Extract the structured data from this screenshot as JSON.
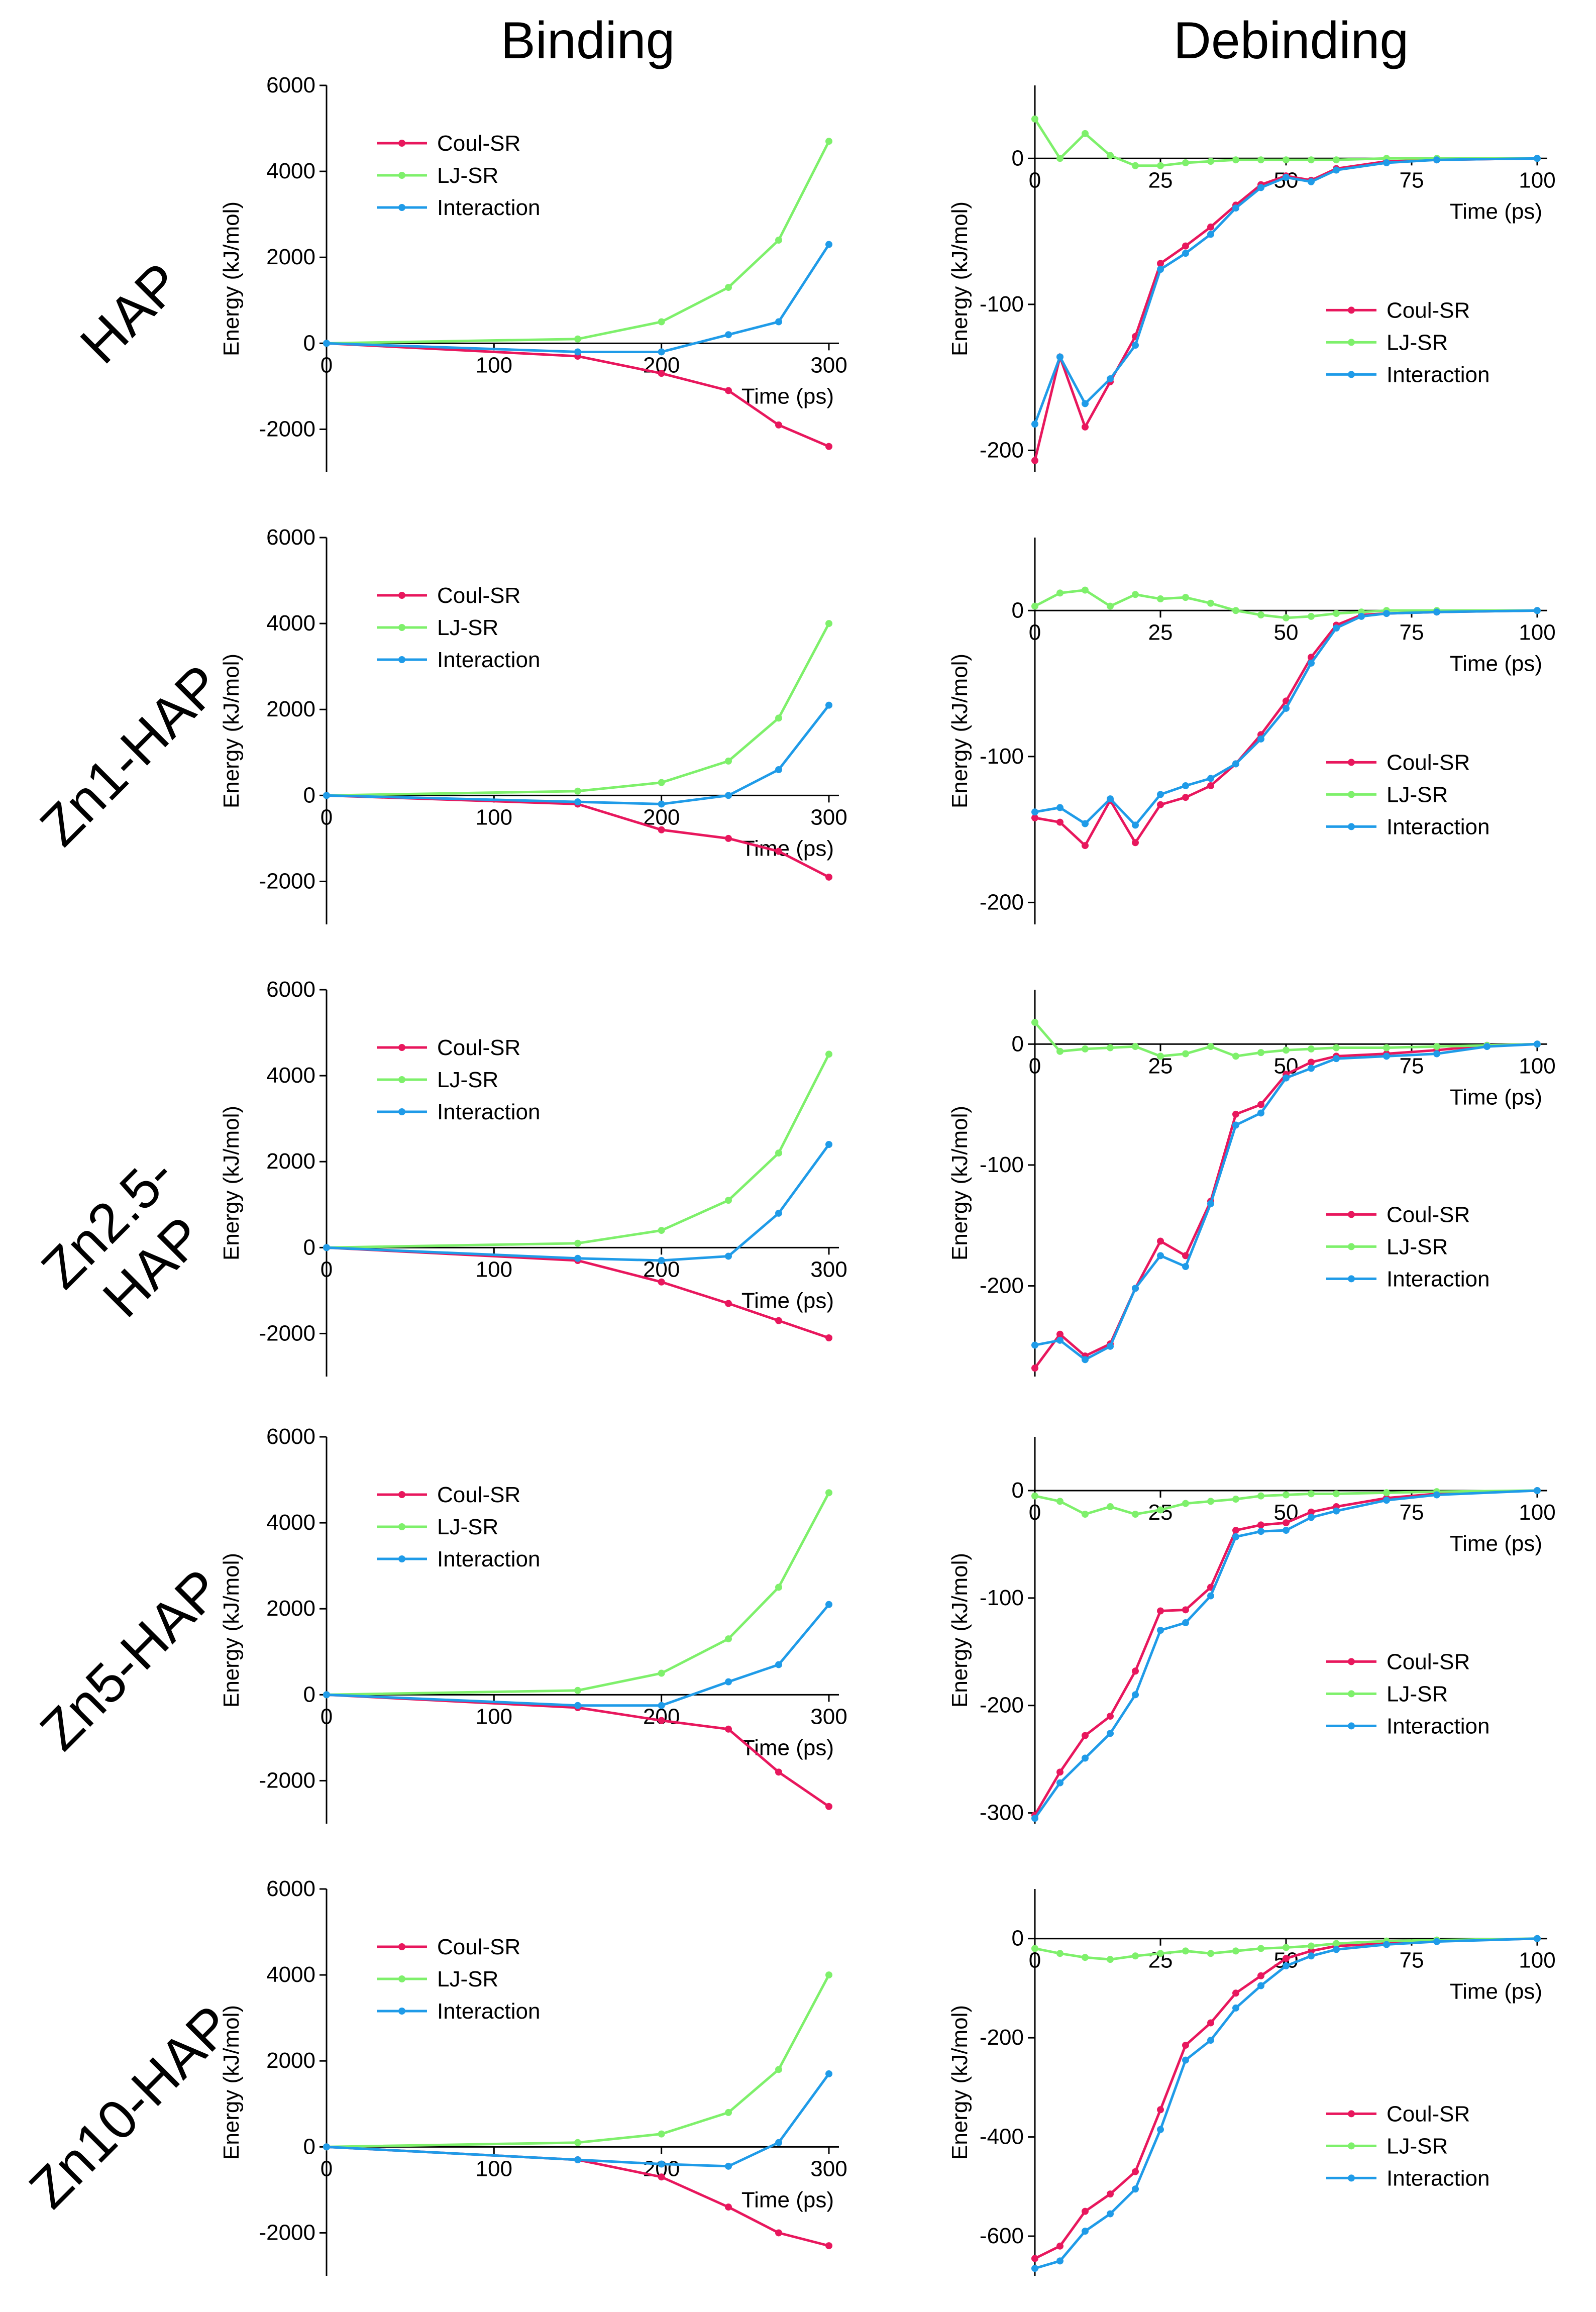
{
  "figure": {
    "col_titles": [
      "Binding",
      "Debinding"
    ],
    "row_labels": [
      "HAP",
      "Zn1-HAP",
      "Zn2.5-HAP",
      "Zn5-HAP",
      "Zn10-HAP"
    ]
  },
  "colors": {
    "coul": "#e8175d",
    "lj": "#7ef06b",
    "inter": "#1f9be8"
  },
  "chart_data": [
    {
      "type": "line",
      "panel": "HAP binding",
      "title": "Binding",
      "row": "HAP",
      "xlabel": "Time (ps)",
      "ylabel": "Energy (kJ/mol)",
      "xlim": [
        0,
        300
      ],
      "ylim": [
        -3000,
        6000
      ],
      "xticks": [
        0,
        100,
        200,
        300
      ],
      "yticks": [
        -2000,
        0,
        2000,
        4000,
        6000
      ],
      "x": [
        0,
        150,
        200,
        240,
        270,
        300
      ],
      "series": [
        {
          "name": "Coul-SR",
          "values": [
            0,
            -300,
            -700,
            -1100,
            -1900,
            -2400
          ]
        },
        {
          "name": "LJ-SR",
          "values": [
            0,
            100,
            500,
            1300,
            2400,
            4700
          ]
        },
        {
          "name": "Interaction",
          "values": [
            0,
            -200,
            -200,
            200,
            500,
            2300
          ]
        }
      ]
    },
    {
      "type": "line",
      "panel": "HAP debinding",
      "title": "Debinding",
      "row": "HAP",
      "xlabel": "Time (ps)",
      "ylabel": "Energy (kJ/mol)",
      "xlim": [
        0,
        100
      ],
      "ylim": [
        -215,
        50
      ],
      "xticks": [
        0,
        25,
        50,
        75,
        100
      ],
      "yticks": [
        -200,
        -100,
        0
      ],
      "x": [
        0,
        5,
        10,
        15,
        20,
        25,
        30,
        35,
        40,
        45,
        50,
        55,
        60,
        70,
        80,
        100
      ],
      "series": [
        {
          "name": "Coul-SR",
          "values": [
            -207,
            -136,
            -184,
            -153,
            -122,
            -72,
            -60,
            -47,
            -32,
            -18,
            -12,
            -15,
            -7,
            -2,
            -1,
            0
          ]
        },
        {
          "name": "LJ-SR",
          "values": [
            27,
            0,
            17,
            2,
            -5,
            -5,
            -3,
            -2,
            -1,
            -1,
            -1,
            -1,
            -1,
            0,
            0,
            0
          ]
        },
        {
          "name": "Interaction",
          "values": [
            -182,
            -136,
            -168,
            -151,
            -128,
            -76,
            -65,
            -52,
            -34,
            -20,
            -13,
            -16,
            -8,
            -3,
            -1,
            0
          ]
        }
      ]
    },
    {
      "type": "line",
      "panel": "Zn1-HAP binding",
      "row": "Zn1-HAP",
      "xlabel": "Time (ps)",
      "ylabel": "Energy (kJ/mol)",
      "xlim": [
        0,
        300
      ],
      "ylim": [
        -3000,
        6000
      ],
      "xticks": [
        0,
        100,
        200,
        300
      ],
      "yticks": [
        -2000,
        0,
        2000,
        4000,
        6000
      ],
      "x": [
        0,
        150,
        200,
        240,
        270,
        300
      ],
      "series": [
        {
          "name": "Coul-SR",
          "values": [
            0,
            -200,
            -800,
            -1000,
            -1300,
            -1900
          ]
        },
        {
          "name": "LJ-SR",
          "values": [
            0,
            100,
            300,
            800,
            1800,
            4000
          ]
        },
        {
          "name": "Interaction",
          "values": [
            0,
            -150,
            -200,
            0,
            600,
            2100
          ]
        }
      ]
    },
    {
      "type": "line",
      "panel": "Zn1-HAP debinding",
      "row": "Zn1-HAP",
      "xlabel": "Time (ps)",
      "ylabel": "Energy (kJ/mol)",
      "xlim": [
        0,
        100
      ],
      "ylim": [
        -215,
        50
      ],
      "xticks": [
        0,
        25,
        50,
        75,
        100
      ],
      "yticks": [
        -200,
        -100,
        0
      ],
      "x": [
        0,
        5,
        10,
        15,
        20,
        25,
        30,
        35,
        40,
        45,
        50,
        55,
        60,
        65,
        70,
        80,
        100
      ],
      "series": [
        {
          "name": "Coul-SR",
          "values": [
            -142,
            -145,
            -161,
            -130,
            -159,
            -133,
            -128,
            -120,
            -105,
            -85,
            -62,
            -32,
            -10,
            -3,
            -2,
            -1,
            0
          ]
        },
        {
          "name": "LJ-SR",
          "values": [
            3,
            12,
            14,
            3,
            11,
            8,
            9,
            5,
            0,
            -3,
            -5,
            -4,
            -2,
            -1,
            0,
            0,
            0
          ]
        },
        {
          "name": "Interaction",
          "values": [
            -138,
            -135,
            -146,
            -129,
            -147,
            -126,
            -120,
            -115,
            -105,
            -88,
            -67,
            -36,
            -12,
            -4,
            -2,
            -1,
            0
          ]
        }
      ]
    },
    {
      "type": "line",
      "panel": "Zn2.5-HAP binding",
      "row": "Zn2.5-HAP",
      "xlabel": "Time (ps)",
      "ylabel": "Energy (kJ/mol)",
      "xlim": [
        0,
        300
      ],
      "ylim": [
        -3000,
        6000
      ],
      "xticks": [
        0,
        100,
        200,
        300
      ],
      "yticks": [
        -2000,
        0,
        2000,
        4000,
        6000
      ],
      "x": [
        0,
        150,
        200,
        240,
        270,
        300
      ],
      "series": [
        {
          "name": "Coul-SR",
          "values": [
            0,
            -300,
            -800,
            -1300,
            -1700,
            -2100
          ]
        },
        {
          "name": "LJ-SR",
          "values": [
            0,
            100,
            400,
            1100,
            2200,
            4500
          ]
        },
        {
          "name": "Interaction",
          "values": [
            0,
            -250,
            -300,
            -200,
            800,
            2400
          ]
        }
      ]
    },
    {
      "type": "line",
      "panel": "Zn2.5-HAP debinding",
      "row": "Zn2.5-HAP",
      "xlabel": "Time (ps)",
      "ylabel": "Energy (kJ/mol)",
      "xlim": [
        0,
        100
      ],
      "ylim": [
        -275,
        45
      ],
      "xticks": [
        0,
        25,
        50,
        75,
        100
      ],
      "yticks": [
        -200,
        -100,
        0
      ],
      "x": [
        0,
        5,
        10,
        15,
        20,
        25,
        30,
        35,
        40,
        45,
        50,
        55,
        60,
        70,
        80,
        90,
        100
      ],
      "series": [
        {
          "name": "Coul-SR",
          "values": [
            -268,
            -240,
            -258,
            -248,
            -202,
            -163,
            -175,
            -130,
            -58,
            -50,
            -25,
            -15,
            -10,
            -8,
            -5,
            -1,
            0
          ]
        },
        {
          "name": "LJ-SR",
          "values": [
            18,
            -6,
            -4,
            -3,
            -2,
            -10,
            -8,
            -2,
            -10,
            -7,
            -5,
            -4,
            -3,
            -3,
            -2,
            -1,
            0
          ]
        },
        {
          "name": "Interaction",
          "values": [
            -249,
            -245,
            -261,
            -250,
            -202,
            -175,
            -184,
            -132,
            -67,
            -57,
            -28,
            -20,
            -12,
            -10,
            -8,
            -2,
            0
          ]
        }
      ]
    },
    {
      "type": "line",
      "panel": "Zn5-HAP binding",
      "row": "Zn5-HAP",
      "xlabel": "Time (ps)",
      "ylabel": "Energy (kJ/mol)",
      "xlim": [
        0,
        300
      ],
      "ylim": [
        -3000,
        6000
      ],
      "xticks": [
        0,
        100,
        200,
        300
      ],
      "yticks": [
        -2000,
        0,
        2000,
        4000,
        6000
      ],
      "x": [
        0,
        150,
        200,
        240,
        270,
        300
      ],
      "series": [
        {
          "name": "Coul-SR",
          "values": [
            0,
            -300,
            -600,
            -800,
            -1800,
            -2600
          ]
        },
        {
          "name": "LJ-SR",
          "values": [
            0,
            100,
            500,
            1300,
            2500,
            4700
          ]
        },
        {
          "name": "Interaction",
          "values": [
            0,
            -250,
            -250,
            300,
            700,
            2100
          ]
        }
      ]
    },
    {
      "type": "line",
      "panel": "Zn5-HAP debinding",
      "row": "Zn5-HAP",
      "xlabel": "Time (ps)",
      "ylabel": "Energy (kJ/mol)",
      "xlim": [
        0,
        100
      ],
      "ylim": [
        -310,
        50
      ],
      "xticks": [
        0,
        25,
        50,
        75,
        100
      ],
      "yticks": [
        -300,
        -200,
        -100,
        0
      ],
      "x": [
        0,
        5,
        10,
        15,
        20,
        25,
        30,
        35,
        40,
        45,
        50,
        55,
        60,
        70,
        80,
        100
      ],
      "series": [
        {
          "name": "Coul-SR",
          "values": [
            -302,
            -262,
            -228,
            -210,
            -168,
            -112,
            -111,
            -90,
            -37,
            -32,
            -30,
            -20,
            -15,
            -7,
            -3,
            0
          ]
        },
        {
          "name": "LJ-SR",
          "values": [
            -5,
            -10,
            -22,
            -15,
            -22,
            -18,
            -12,
            -10,
            -8,
            -5,
            -4,
            -3,
            -3,
            -2,
            -1,
            0
          ]
        },
        {
          "name": "Interaction",
          "values": [
            -305,
            -272,
            -249,
            -226,
            -190,
            -130,
            -123,
            -98,
            -43,
            -38,
            -37,
            -25,
            -19,
            -9,
            -4,
            0
          ]
        }
      ]
    },
    {
      "type": "line",
      "panel": "Zn10-HAP binding",
      "row": "Zn10-HAP",
      "xlabel": "Time (ps)",
      "ylabel": "Energy (kJ/mol)",
      "xlim": [
        0,
        300
      ],
      "ylim": [
        -3000,
        6000
      ],
      "xticks": [
        0,
        100,
        200,
        300
      ],
      "yticks": [
        -2000,
        0,
        2000,
        4000,
        6000
      ],
      "x": [
        0,
        150,
        200,
        240,
        270,
        300
      ],
      "series": [
        {
          "name": "Coul-SR",
          "values": [
            0,
            -300,
            -700,
            -1400,
            -2000,
            -2300
          ]
        },
        {
          "name": "LJ-SR",
          "values": [
            0,
            100,
            300,
            800,
            1800,
            4000
          ]
        },
        {
          "name": "Interaction",
          "values": [
            0,
            -300,
            -400,
            -450,
            100,
            1700
          ]
        }
      ]
    },
    {
      "type": "line",
      "panel": "Zn10-HAP debinding",
      "row": "Zn10-HAP",
      "xlabel": "Time (ps)",
      "ylabel": "Energy (kJ/mol)",
      "xlim": [
        0,
        100
      ],
      "ylim": [
        -680,
        100
      ],
      "xticks": [
        0,
        25,
        50,
        75,
        100
      ],
      "yticks": [
        -600,
        -400,
        -200,
        0
      ],
      "x": [
        0,
        5,
        10,
        15,
        20,
        25,
        30,
        35,
        40,
        45,
        50,
        55,
        60,
        70,
        80,
        100
      ],
      "series": [
        {
          "name": "Coul-SR",
          "values": [
            -645,
            -620,
            -550,
            -515,
            -470,
            -345,
            -215,
            -170,
            -110,
            -75,
            -40,
            -25,
            -15,
            -10,
            -5,
            0
          ]
        },
        {
          "name": "LJ-SR",
          "values": [
            -20,
            -30,
            -38,
            -42,
            -35,
            -30,
            -25,
            -30,
            -25,
            -20,
            -18,
            -15,
            -10,
            -5,
            -3,
            0
          ]
        },
        {
          "name": "Interaction",
          "values": [
            -665,
            -650,
            -590,
            -555,
            -505,
            -385,
            -245,
            -205,
            -140,
            -95,
            -55,
            -35,
            -22,
            -12,
            -6,
            0
          ]
        }
      ]
    }
  ]
}
